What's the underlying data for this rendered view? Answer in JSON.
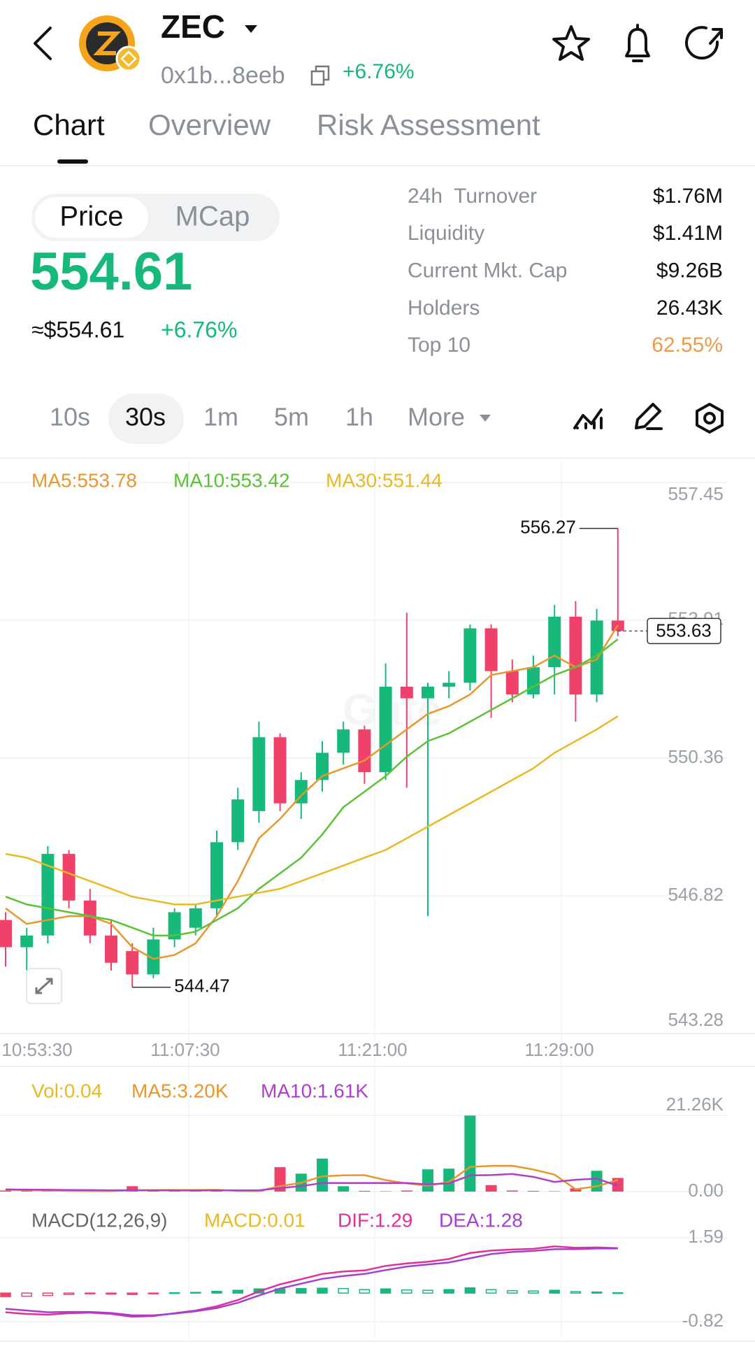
{
  "header": {
    "symbol": "ZEC",
    "address": "0x1b...8eeb",
    "change": "+6.76%"
  },
  "tabs": [
    "Chart",
    "Overview",
    "Risk Assessment"
  ],
  "toggle": [
    "Price",
    "MCap"
  ],
  "price": "554.61",
  "price_usd": "≈$554.61",
  "price_change": "+6.76%",
  "stats": [
    {
      "label": "24h  Turnover",
      "value": "$1.76M"
    },
    {
      "label": "Liquidity",
      "value": "$1.41M"
    },
    {
      "label": "Current Mkt. Cap",
      "value": "$9.26B"
    },
    {
      "label": "Holders",
      "value": "26.43K"
    },
    {
      "label": "Top 10",
      "value": "62.55%"
    }
  ],
  "intervals": [
    "10s",
    "30s",
    "1m",
    "5m",
    "1h",
    "More"
  ],
  "watermark": "Gate",
  "chart_data": [
    {
      "type": "candlestick",
      "up_color": "#16b979",
      "down_color": "#f0416b",
      "open": [
        546.2,
        545.5,
        545.8,
        547.9,
        546.7,
        545.8,
        545.4,
        544.8,
        545.7,
        546.0,
        546.5,
        548.2,
        549.0,
        550.9,
        549.2,
        549.8,
        550.5,
        551.1,
        550.0,
        552.2,
        551.9,
        552.2,
        552.3,
        553.7,
        552.6,
        552.0,
        552.7,
        554.0,
        552.0,
        553.9
      ],
      "high": [
        546.4,
        546.0,
        548.1,
        548.0,
        547.0,
        546.2,
        545.6,
        546.0,
        546.5,
        546.6,
        548.5,
        549.6,
        551.3,
        551.0,
        550.0,
        550.8,
        551.3,
        551.2,
        552.8,
        554.1,
        552.3,
        552.6,
        553.8,
        553.8,
        552.9,
        553.0,
        554.3,
        554.4,
        554.2,
        556.27
      ],
      "low": [
        545.0,
        544.9,
        545.6,
        546.5,
        545.6,
        544.9,
        544.47,
        544.7,
        545.5,
        545.8,
        546.3,
        548.0,
        548.7,
        549.0,
        548.8,
        549.5,
        550.2,
        549.7,
        549.8,
        549.6,
        546.3,
        551.9,
        552.1,
        551.4,
        551.8,
        551.9,
        552.0,
        551.3,
        551.8,
        553.5
      ],
      "close": [
        545.5,
        545.8,
        547.9,
        546.7,
        545.8,
        545.1,
        544.8,
        545.7,
        546.4,
        546.5,
        548.2,
        549.3,
        550.9,
        549.2,
        549.8,
        550.5,
        551.1,
        550.0,
        552.2,
        551.9,
        552.2,
        552.3,
        553.7,
        552.6,
        552.0,
        552.7,
        554.0,
        552.0,
        553.9,
        553.63
      ],
      "series": [
        {
          "name": "MA5:553.78",
          "color": "#e8962e",
          "values": [
            546.5,
            546.1,
            546.2,
            546.3,
            546.3,
            546.1,
            545.5,
            545.2,
            545.3,
            545.6,
            546.3,
            547.2,
            548.3,
            548.8,
            549.4,
            549.9,
            550.1,
            550.3,
            550.7,
            551.1,
            551.5,
            551.7,
            552.0,
            552.5,
            552.6,
            552.7,
            553.0,
            552.7,
            552.9,
            553.78
          ]
        },
        {
          "name": "MA10:553.42",
          "color": "#5bc236",
          "values": [
            546.8,
            546.6,
            546.5,
            546.4,
            546.3,
            546.2,
            546.0,
            545.8,
            545.8,
            545.9,
            546.2,
            546.5,
            547.0,
            547.4,
            547.8,
            548.4,
            549.1,
            549.5,
            549.9,
            550.4,
            550.8,
            551.0,
            551.3,
            551.6,
            551.9,
            552.2,
            552.5,
            552.7,
            553.0,
            553.42
          ]
        },
        {
          "name": "MA30:551.44",
          "color": "#e8b923",
          "values": [
            547.9,
            547.8,
            547.6,
            547.4,
            547.2,
            547.0,
            546.8,
            546.7,
            546.6,
            546.6,
            546.7,
            546.8,
            546.9,
            547.0,
            547.2,
            547.4,
            547.6,
            547.8,
            548.0,
            548.3,
            548.6,
            548.9,
            549.2,
            549.5,
            549.8,
            550.1,
            550.5,
            550.8,
            551.1,
            551.44
          ]
        }
      ],
      "ylim": [
        543.28,
        557.45
      ],
      "yticks": [
        557.45,
        553.91,
        550.36,
        546.82,
        543.28
      ],
      "x_labels": [
        "10:53:30",
        "11:07:30",
        "11:21:00",
        "11:29:00"
      ]
    },
    {
      "type": "bar",
      "title": "Vol:0.04",
      "title_color": "#e8b923",
      "values": [
        300,
        200,
        150,
        100,
        100,
        100,
        1500,
        300,
        200,
        100,
        200,
        150,
        100,
        6800,
        5000,
        9200,
        1500,
        200,
        100,
        300,
        6200,
        6400,
        21200,
        1800,
        300,
        200,
        100,
        900,
        5800,
        3800
      ],
      "series": [
        {
          "name": "MA5:3.20K",
          "color": "#e8962e",
          "values": [
            500,
            400,
            300,
            200,
            150,
            130,
            360,
            400,
            440,
            440,
            480,
            190,
            150,
            1500,
            2450,
            4250,
            4540,
            4580,
            3200,
            2260,
            1660,
            2660,
            6880,
            7160,
            7190,
            6150,
            4720,
            660,
            1460,
            3200
          ]
        },
        {
          "name": "MA10:1.61K",
          "color": "#b03fc8",
          "values": [
            600,
            550,
            500,
            450,
            400,
            350,
            380,
            360,
            330,
            320,
            330,
            360,
            330,
            1000,
            1500,
            2400,
            2400,
            2400,
            2400,
            2400,
            2000,
            2300,
            4500,
            4600,
            4900,
            4100,
            2700,
            3300,
            3600,
            1610
          ]
        }
      ],
      "ylim": [
        0,
        21260
      ],
      "yticks": [
        {
          "value": 21260,
          "label": "21.26K"
        },
        {
          "value": 0,
          "label": "0.00"
        }
      ]
    },
    {
      "type": "macd",
      "title": "MACD(12,26,9)",
      "hist_name": "MACD:0.01",
      "hist_color": "#e8b923",
      "values": [
        -0.1,
        -0.09,
        -0.07,
        -0.04,
        -0.02,
        -0.03,
        -0.04,
        -0.02,
        0.01,
        0.02,
        0.05,
        0.08,
        0.12,
        0.12,
        0.13,
        0.14,
        0.13,
        0.1,
        0.12,
        0.09,
        0.08,
        0.1,
        0.15,
        0.1,
        0.07,
        0.06,
        0.08,
        0.04,
        0.03,
        0.01
      ],
      "series": [
        {
          "name": "DIF:1.29",
          "color": "#e0309a",
          "values": [
            -0.55,
            -0.6,
            -0.62,
            -0.58,
            -0.56,
            -0.6,
            -0.68,
            -0.66,
            -0.58,
            -0.5,
            -0.38,
            -0.2,
            0.05,
            0.25,
            0.4,
            0.55,
            0.62,
            0.65,
            0.78,
            0.85,
            0.9,
            0.98,
            1.15,
            1.22,
            1.25,
            1.27,
            1.34,
            1.3,
            1.31,
            1.29
          ]
        },
        {
          "name": "DEA:1.28",
          "color": "#a63fd0",
          "values": [
            -0.45,
            -0.5,
            -0.55,
            -0.54,
            -0.54,
            -0.57,
            -0.64,
            -0.64,
            -0.59,
            -0.52,
            -0.43,
            -0.28,
            -0.07,
            0.13,
            0.27,
            0.41,
            0.49,
            0.55,
            0.66,
            0.76,
            0.82,
            0.88,
            1.0,
            1.12,
            1.18,
            1.21,
            1.26,
            1.26,
            1.28,
            1.28
          ]
        }
      ],
      "ylim": [
        -0.82,
        1.59
      ],
      "yticks": [
        1.59,
        -0.82
      ]
    }
  ]
}
